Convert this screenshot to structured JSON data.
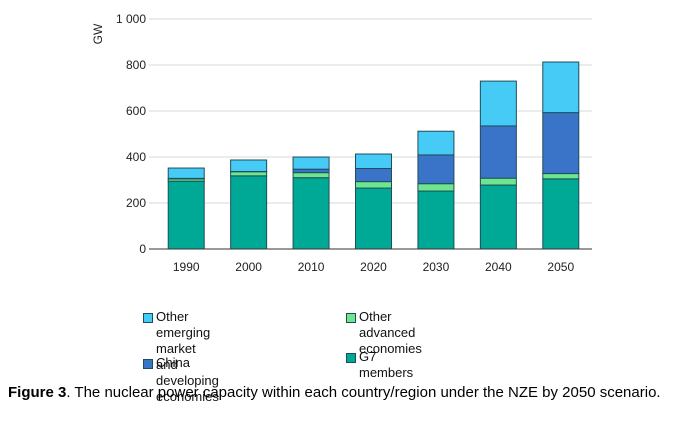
{
  "chart_data": {
    "type": "bar",
    "stacked": true,
    "title": "",
    "xlabel": "",
    "ylabel": "GW",
    "ylim": [
      0,
      1000
    ],
    "yticks": [
      0,
      200,
      400,
      600,
      800,
      1000
    ],
    "ytick_labels": [
      "0",
      "200",
      "400",
      "600",
      "800",
      "1 000"
    ],
    "grid": true,
    "legend_position": "bottom",
    "categories": [
      "1990",
      "2000",
      "2010",
      "2020",
      "2030",
      "2040",
      "2050"
    ],
    "series": [
      {
        "name": "G7 members",
        "color": "#00A896",
        "values": [
          295,
          318,
          310,
          265,
          252,
          278,
          305
        ]
      },
      {
        "name": "Other advanced economies",
        "color": "#6EE68E",
        "values": [
          10,
          18,
          22,
          28,
          32,
          30,
          23
        ]
      },
      {
        "name": "China",
        "color": "#3A74C9",
        "values": [
          2,
          1,
          15,
          57,
          125,
          227,
          265
        ]
      },
      {
        "name": "Other emerging market and developing economies",
        "color": "#45CBF5",
        "values": [
          45,
          50,
          53,
          63,
          103,
          195,
          220
        ]
      }
    ]
  },
  "legend": {
    "items": [
      {
        "label": "Other emerging market and\ndeveloping economies",
        "color": "#45CBF5"
      },
      {
        "label": "Other advanced economies",
        "color": "#6EE68E"
      },
      {
        "label": "China",
        "color": "#3A74C9"
      },
      {
        "label": "G7 members",
        "color": "#00A896"
      }
    ]
  },
  "caption": {
    "label": "Figure 3",
    "text": ". The nuclear power capacity within each country/region under the NZE by 2050 scenario."
  }
}
